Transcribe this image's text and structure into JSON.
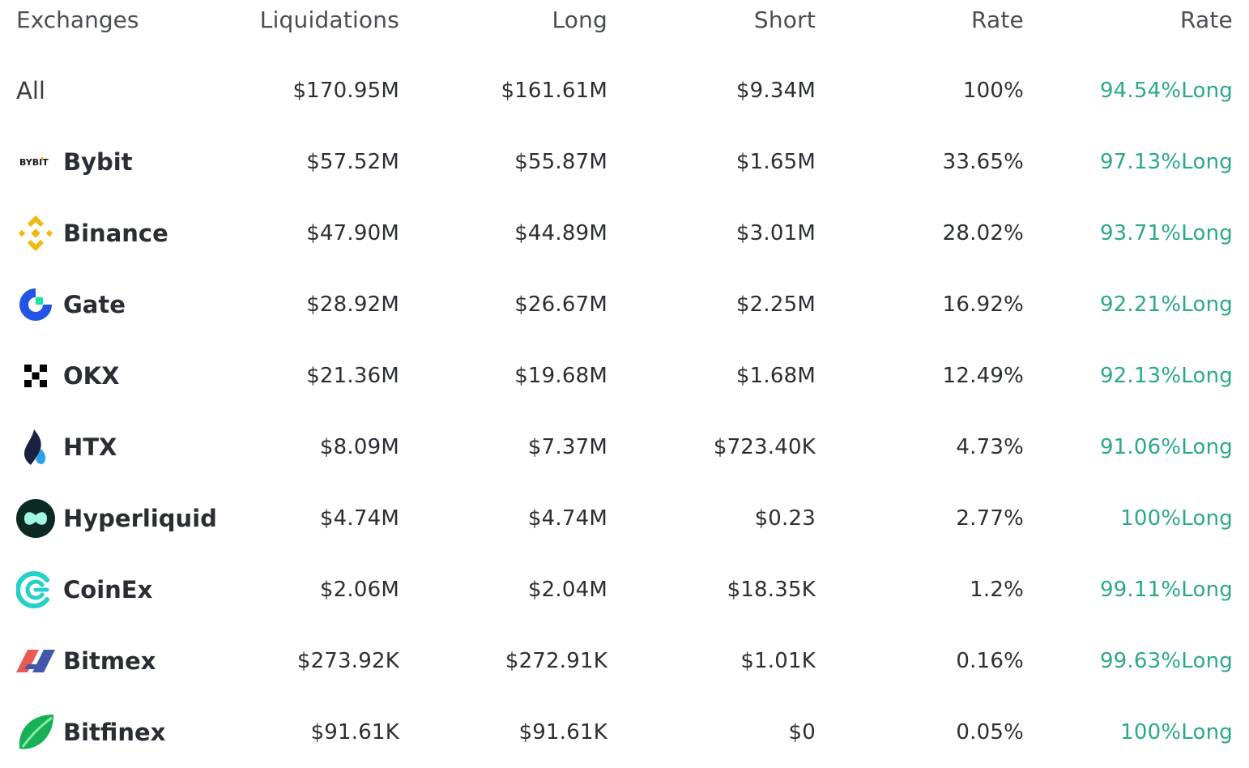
{
  "headers": {
    "exchanges": "Exchanges",
    "liquidations": "Liquidations",
    "long": "Long",
    "short": "Short",
    "rate": "Rate",
    "rate2": "Rate"
  },
  "all": {
    "name": "All",
    "liquidations": "$170.95M",
    "long": "$161.61M",
    "short": "$9.34M",
    "rate": "100%",
    "long_rate": "94.54%Long"
  },
  "rows": [
    {
      "name": "Bybit",
      "icon": "bybit-logo-icon",
      "liquidations": "$57.52M",
      "long": "$55.87M",
      "short": "$1.65M",
      "rate": "33.65%",
      "long_rate": "97.13%Long",
      "logo_text": "BYBIT"
    },
    {
      "name": "Binance",
      "icon": "binance-logo-icon",
      "liquidations": "$47.90M",
      "long": "$44.89M",
      "short": "$3.01M",
      "rate": "28.02%",
      "long_rate": "93.71%Long"
    },
    {
      "name": "Gate",
      "icon": "gate-logo-icon",
      "liquidations": "$28.92M",
      "long": "$26.67M",
      "short": "$2.25M",
      "rate": "16.92%",
      "long_rate": "92.21%Long"
    },
    {
      "name": "OKX",
      "icon": "okx-logo-icon",
      "liquidations": "$21.36M",
      "long": "$19.68M",
      "short": "$1.68M",
      "rate": "12.49%",
      "long_rate": "92.13%Long"
    },
    {
      "name": "HTX",
      "icon": "htx-logo-icon",
      "liquidations": "$8.09M",
      "long": "$7.37M",
      "short": "$723.40K",
      "rate": "4.73%",
      "long_rate": "91.06%Long"
    },
    {
      "name": "Hyperliquid",
      "icon": "hyperliquid-logo-icon",
      "liquidations": "$4.74M",
      "long": "$4.74M",
      "short": "$0.23",
      "rate": "2.77%",
      "long_rate": "100%Long"
    },
    {
      "name": "CoinEx",
      "icon": "coinex-logo-icon",
      "liquidations": "$2.06M",
      "long": "$2.04M",
      "short": "$18.35K",
      "rate": "1.2%",
      "long_rate": "99.11%Long"
    },
    {
      "name": "Bitmex",
      "icon": "bitmex-logo-icon",
      "liquidations": "$273.92K",
      "long": "$272.91K",
      "short": "$1.01K",
      "rate": "0.16%",
      "long_rate": "99.63%Long"
    },
    {
      "name": "Bitfinex",
      "icon": "bitfinex-logo-icon",
      "liquidations": "$91.61K",
      "long": "$91.61K",
      "short": "$0",
      "rate": "0.05%",
      "long_rate": "100%Long"
    }
  ],
  "colors": {
    "long_rate_green": "#2ba88b",
    "text": "#2a2d33"
  }
}
